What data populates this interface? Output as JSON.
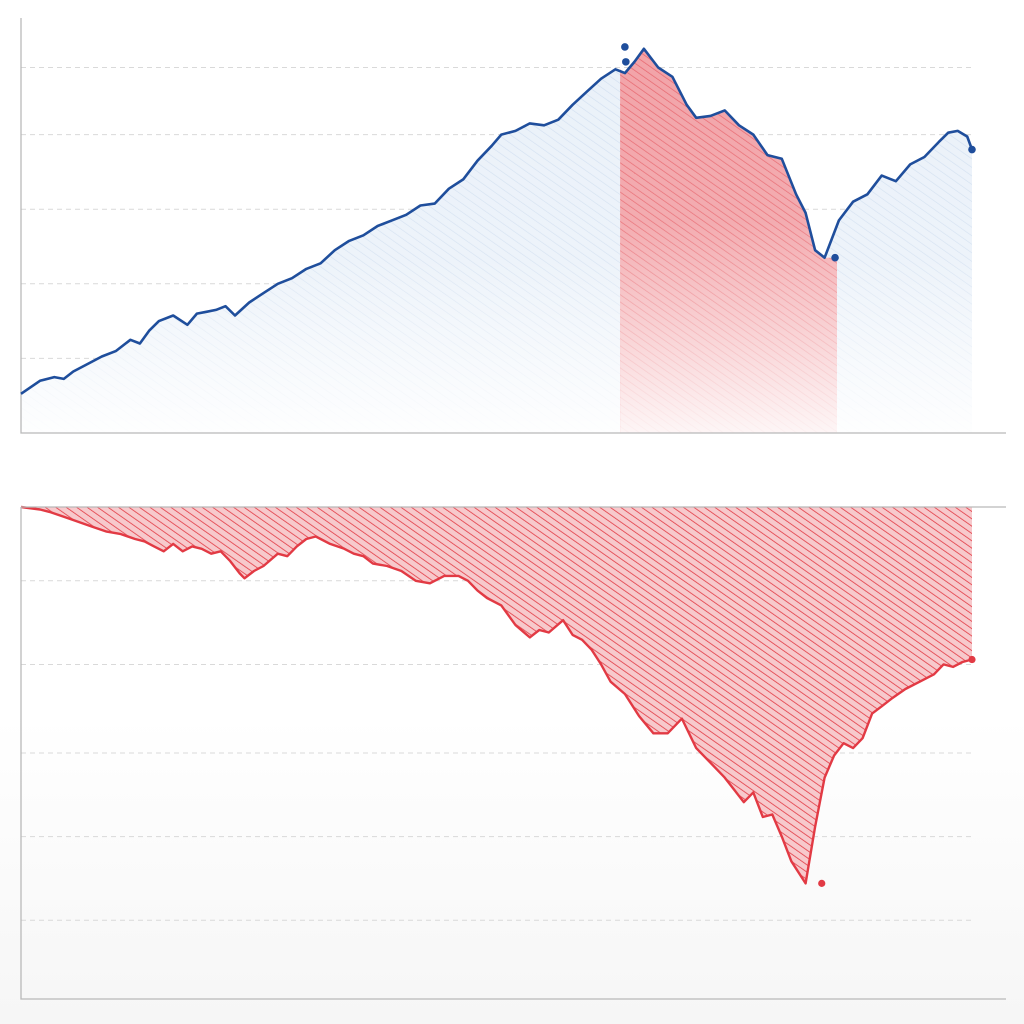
{
  "chart_data": [
    {
      "type": "line",
      "title": "",
      "xlabel": "",
      "ylabel": "",
      "xlim": [
        0,
        100
      ],
      "ylim": [
        0,
        100
      ],
      "grid": true,
      "gridlines": [
        20,
        40,
        60,
        80,
        98
      ],
      "x": [
        0,
        2,
        3.5,
        4.5,
        5.5,
        7,
        8.5,
        10,
        11.5,
        12.5,
        13.5,
        14.5,
        16,
        17.5,
        18.5,
        19.5,
        20.5,
        21.5,
        22.5,
        24,
        25.5,
        27,
        28.5,
        30,
        31.5,
        33,
        34.5,
        36,
        37.5,
        39,
        40.5,
        42,
        43.5,
        45,
        46.5,
        48,
        49.5,
        50.5,
        52,
        53.5,
        55,
        56.5,
        58,
        59.5,
        61,
        62.5,
        63.5,
        64.5,
        65.5,
        67,
        68.5,
        70,
        71,
        72.5,
        74,
        75.5,
        77,
        78.5,
        80,
        81.5,
        82.5,
        83.5,
        84.5,
        86,
        87.5,
        89,
        90.5,
        92,
        93.5,
        95,
        96.5,
        97.5,
        98.5,
        99.5,
        100
      ],
      "y": [
        10.5,
        14,
        15,
        14.5,
        16.5,
        18.5,
        20.5,
        22,
        25,
        24,
        27.5,
        30,
        31.5,
        29,
        32,
        32.5,
        33,
        34,
        31.5,
        35,
        37.5,
        40,
        41.5,
        44,
        45.5,
        49,
        51.5,
        53,
        55.5,
        57,
        58.5,
        61,
        61.5,
        65.5,
        68,
        73,
        77,
        80,
        81,
        83,
        82.5,
        84,
        88,
        91.5,
        95,
        97.5,
        96.5,
        99.5,
        103,
        98,
        95.5,
        88,
        84.5,
        85,
        86.5,
        82.5,
        80,
        74.5,
        73.5,
        64,
        59,
        49,
        47,
        57,
        62,
        64,
        69,
        67.5,
        72,
        74,
        78,
        80.5,
        81,
        79.5,
        76
      ],
      "series": [
        {
          "values_ref": "y",
          "color": "#1f4e9c"
        }
      ],
      "highlight": {
        "x_from": 63,
        "x_to": 85.8,
        "color": "#e8303a"
      },
      "markers": [
        {
          "x": 63.5,
          "y": 103.5
        },
        {
          "x": 63.6,
          "y": 99.5
        },
        {
          "x": 85.6,
          "y": 47
        },
        {
          "x": 100,
          "y": 76
        }
      ]
    },
    {
      "type": "area",
      "title": "",
      "xlabel": "",
      "ylabel": "",
      "xlim": [
        0,
        100
      ],
      "ylim": [
        -100,
        0
      ],
      "grid": true,
      "gridlines": [
        -15,
        -32,
        -50,
        -67,
        -84
      ],
      "x": [
        0,
        2,
        3,
        4.5,
        6,
        7.5,
        9,
        10.5,
        12,
        13,
        14,
        15,
        16,
        17,
        18,
        19,
        20,
        21,
        22,
        23,
        23.5,
        24.5,
        25.5,
        27,
        28,
        29,
        30,
        31,
        32.5,
        34,
        35,
        36,
        37,
        38.5,
        40,
        41.5,
        43,
        44.5,
        46,
        47,
        48,
        49,
        50.5,
        52,
        53.5,
        54.5,
        55.5,
        57,
        58,
        59,
        60,
        61,
        62,
        63.5,
        65,
        66.5,
        68,
        69.5,
        71,
        72.5,
        74,
        75,
        76,
        77,
        78,
        79,
        80,
        81,
        82.5,
        83.5,
        84.5,
        85.5,
        86.5,
        87.5,
        88.5,
        89.5,
        90.5,
        91.5,
        93,
        94.5,
        96,
        97,
        98,
        99,
        100
      ],
      "y": [
        0,
        -0.5,
        -1,
        -2,
        -3,
        -4,
        -5,
        -5.5,
        -6.5,
        -7,
        -8,
        -9,
        -7.5,
        -9,
        -8,
        -8.5,
        -9.5,
        -9,
        -11,
        -13.5,
        -14.5,
        -13,
        -12,
        -9.5,
        -10,
        -8,
        -6.5,
        -6,
        -7.5,
        -8.5,
        -9.5,
        -10,
        -11.5,
        -12,
        -13,
        -15,
        -15.5,
        -14,
        -14,
        -15,
        -17,
        -18.5,
        -20,
        -24,
        -26.5,
        -25,
        -25.5,
        -23,
        -26,
        -27,
        -29,
        -32,
        -35.5,
        -38,
        -42.5,
        -46,
        -46,
        -43,
        -49,
        -52,
        -55,
        -57.5,
        -60,
        -58,
        -63,
        -62.5,
        -67,
        -72,
        -76.5,
        -65,
        -55,
        -50.5,
        -48,
        -49,
        -47,
        -42,
        -40.5,
        -39,
        -37,
        -35.5,
        -34,
        -32,
        -32.5,
        -31.5,
        -31
      ],
      "series": [
        {
          "values_ref": "y",
          "color": "#e8303a"
        }
      ],
      "markers": [
        {
          "x": 84.2,
          "y": -76.5
        },
        {
          "x": 100,
          "y": -31
        }
      ]
    }
  ]
}
